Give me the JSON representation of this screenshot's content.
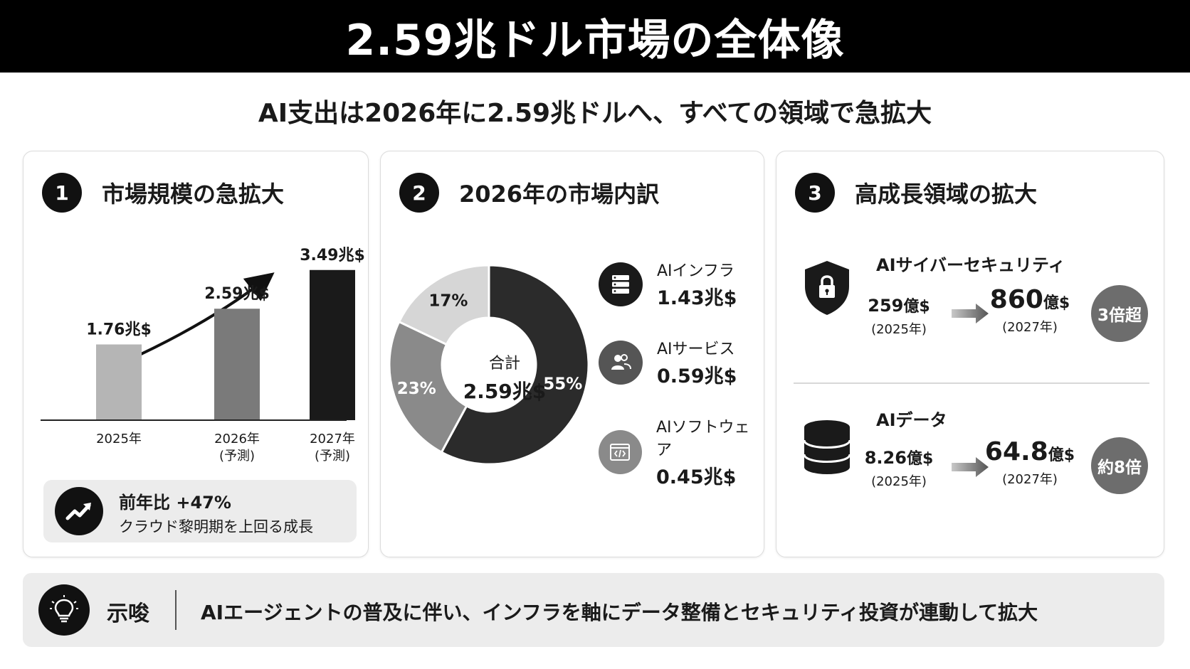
{
  "header": {
    "title": "2.59兆ドル市場の全体像",
    "subtitle": "AI支出は2026年に2.59兆ドルへ、すべての領域で急拡大"
  },
  "panel1": {
    "number": "1",
    "title": "市場規模の急拡大",
    "growth": {
      "icon": "trend-up-icon",
      "line1": "前年比 +47%",
      "line2": "クラウド黎明期を上回る成長"
    }
  },
  "panel2": {
    "number": "2",
    "title": "2026年の市場内訳",
    "center_label": "合計",
    "center_value": "2.59兆$",
    "legend": [
      {
        "name": "AIインフラ",
        "value": "1.43兆$",
        "icon": "server-icon"
      },
      {
        "name": "AIサービス",
        "value": "0.59兆$",
        "icon": "people-icon"
      },
      {
        "name": "AIソフトウェア",
        "value": "0.45兆$",
        "icon": "code-window-icon"
      }
    ]
  },
  "panel3": {
    "number": "3",
    "title": "高成長領域の拡大",
    "items": [
      {
        "name": "AIサイバーセキュリティ",
        "icon": "shield-lock-icon",
        "from_value": "259",
        "from_unit": "億$",
        "from_year": "(2025年)",
        "to_value": "860",
        "to_unit": "億$",
        "to_year": "(2027年)",
        "multiplier": "3倍超"
      },
      {
        "name": "AIデータ",
        "icon": "database-icon",
        "from_value": "8.26",
        "from_unit": "億$",
        "from_year": "(2025年)",
        "to_value": "64.8",
        "to_unit": "億$",
        "to_year": "(2027年)",
        "multiplier": "約8倍"
      }
    ]
  },
  "implication": {
    "icon": "lightbulb-icon",
    "label": "示唆",
    "text": "AIエージェントの普及に伴い、インフラを軸にデータ整備とセキュリティ投資が連動して拡大"
  },
  "chart_data": [
    {
      "type": "bar",
      "categories": [
        "2025年",
        "2026年\n(予測)",
        "2027年\n(予測)"
      ],
      "category_lines": [
        [
          "2025年"
        ],
        [
          "2026年",
          "(予測)"
        ],
        [
          "2027年",
          "(予測)"
        ]
      ],
      "values": [
        1.76,
        2.59,
        3.49
      ],
      "data_labels": [
        "1.76兆$",
        "2.59兆$",
        "3.49兆$"
      ],
      "colors": [
        "#b5b5b5",
        "#7a7a7a",
        "#1a1a1a"
      ],
      "ylim": [
        0,
        3.8
      ],
      "grid": false
    },
    {
      "type": "pie",
      "donut": true,
      "labels": [
        "AIインフラ",
        "AIサービス",
        "AIソフトウェア"
      ],
      "values": [
        55,
        23,
        17
      ],
      "data_labels": [
        "55%",
        "23%",
        "17%"
      ],
      "colors": [
        "#2b2b2b",
        "#8a8a8a",
        "#d6d6d6"
      ]
    }
  ]
}
